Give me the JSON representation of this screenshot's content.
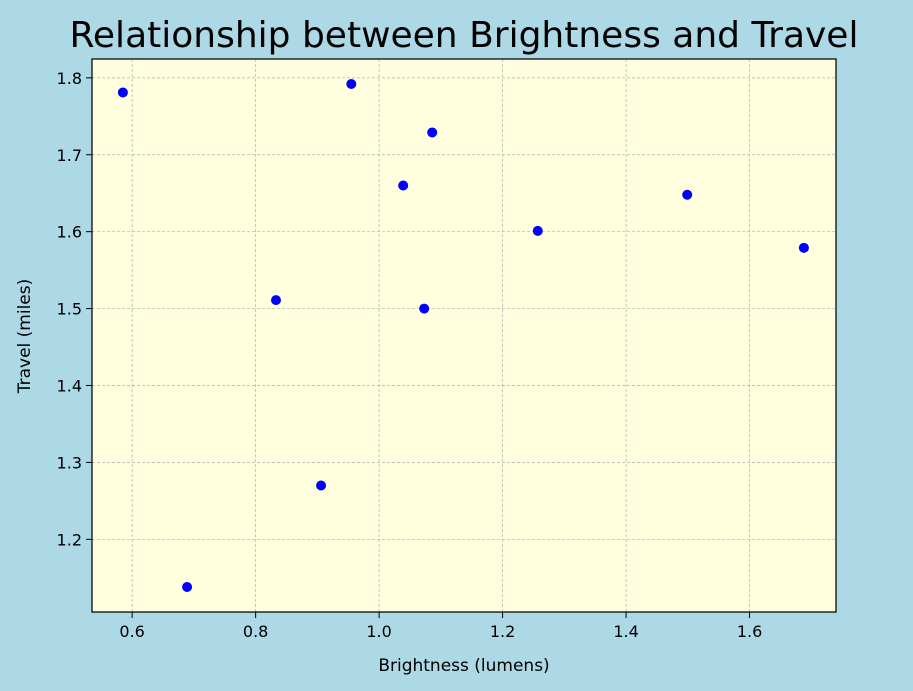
{
  "chart_data": {
    "type": "scatter",
    "title": "Relationship between Brightness and Travel",
    "xlabel": "Brightness (lumens)",
    "ylabel": "Travel (miles)",
    "xlim": [
      0.535,
      1.74
    ],
    "ylim": [
      1.1055,
      1.8245
    ],
    "xticks": [
      0.6,
      0.8,
      1.0,
      1.2,
      1.4,
      1.6
    ],
    "xtick_labels": [
      "0.6",
      "0.8",
      "1.0",
      "1.2",
      "1.4",
      "1.6"
    ],
    "yticks": [
      1.2,
      1.3,
      1.4,
      1.5,
      1.6,
      1.7,
      1.8
    ],
    "ytick_labels": [
      "1.2",
      "1.3",
      "1.4",
      "1.5",
      "1.6",
      "1.7",
      "1.8"
    ],
    "grid": true,
    "point_color": "#0000ff",
    "plot_background": "#ffffe0",
    "page_background": "#add8e6",
    "points": [
      {
        "x": 0.585,
        "y": 1.781
      },
      {
        "x": 0.689,
        "y": 1.138
      },
      {
        "x": 0.833,
        "y": 1.511
      },
      {
        "x": 0.906,
        "y": 1.27
      },
      {
        "x": 0.955,
        "y": 1.792
      },
      {
        "x": 1.039,
        "y": 1.66
      },
      {
        "x": 1.073,
        "y": 1.5
      },
      {
        "x": 1.086,
        "y": 1.729
      },
      {
        "x": 1.257,
        "y": 1.601
      },
      {
        "x": 1.499,
        "y": 1.648
      },
      {
        "x": 1.688,
        "y": 1.579
      }
    ]
  }
}
